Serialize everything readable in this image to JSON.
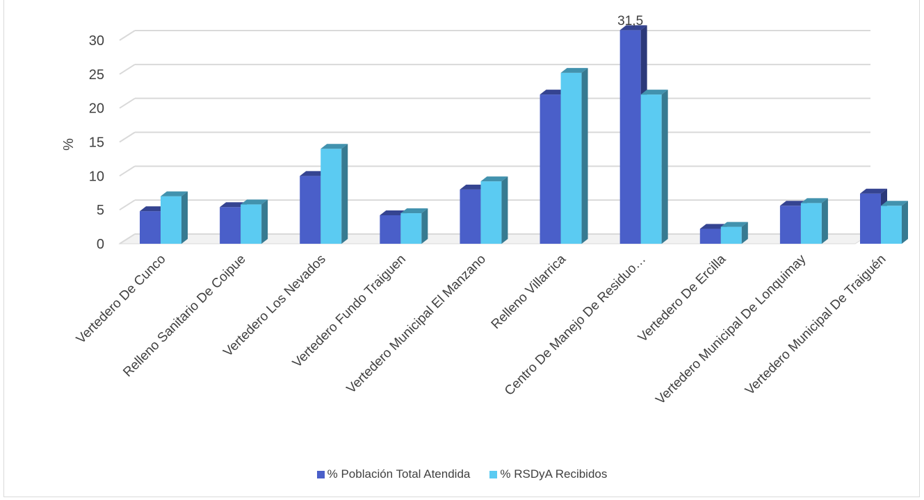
{
  "chart_data": {
    "type": "bar",
    "title": "",
    "xlabel": "",
    "ylabel": "%",
    "ylim": [
      0,
      30
    ],
    "yticks": [
      0,
      5,
      10,
      15,
      20,
      25,
      30
    ],
    "grid": true,
    "legend_position": "bottom",
    "categories": [
      "Vertedero De Cunco",
      "Relleno Sanitario De Coipue",
      "Vertedero Los Nevados",
      "Vertedero Fundo Traiguen",
      "Vertedero Municipal El Manzano",
      "Relleno Villarrica",
      "Centro De Manejo De Residuo…",
      "Vertedero De Ercilla",
      "Vertedero Municipal De Lonquimay",
      "Vertedero Municipal De Traiguén"
    ],
    "series": [
      {
        "name": "% Población Total Atendida",
        "color": "#4a5fc9",
        "values": [
          4.8,
          5.4,
          10.0,
          4.2,
          8.0,
          22.0,
          31.5,
          2.2,
          5.6,
          7.4
        ]
      },
      {
        "name": "% RSDyA Recibidos",
        "color": "#5bcbf2",
        "values": [
          7.0,
          5.8,
          14.0,
          4.5,
          9.2,
          25.2,
          22.0,
          2.5,
          6.0,
          5.6
        ]
      }
    ],
    "annotations": [
      {
        "series": 0,
        "index": 6,
        "text": "31,5"
      }
    ]
  }
}
